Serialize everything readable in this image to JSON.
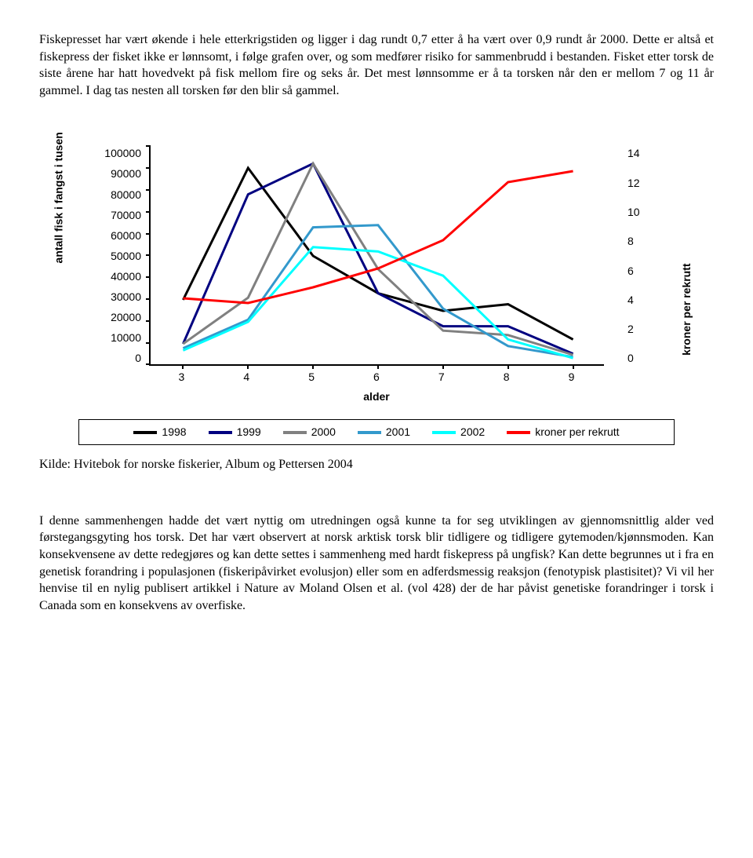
{
  "paragraph1": "Fiskepresset har vært økende i hele etterkrigstiden og ligger i dag rundt 0,7 etter å ha vært over 0,9 rundt år 2000. Dette er altså et fiskepress der fisket ikke er lønnsomt, i følge grafen over, og som medfører risiko for sammenbrudd i bestanden. Fisket etter torsk de siste årene har hatt hovedvekt på fisk mellom fire og seks år. Det mest lønnsomme er å ta torsken når den er mellom 7 og 11 år gammel. I dag tas nesten all torsken før den blir så gammel.",
  "paragraph2": "I denne sammenhengen hadde det vært nyttig om utredningen også kunne ta for seg utviklingen av gjennomsnittlig alder ved førstegangsgyting hos torsk. Det har vært observert at norsk arktisk torsk blir tidligere og tidligere gytemoden/kjønnsmoden. Kan konsekvensene av dette redegjøres og kan dette settes i sammenheng med hardt fiskepress på ungfisk? Kan dette begrunnes ut i fra en genetisk forandring i populasjonen (fiskeripåvirket evolusjon) eller som en adferdsmessig reaksjon (fenotypisk plastisitet)? Vi vil her henvise til en nylig publisert artikkel i Nature av Moland Olsen et al. (vol 428) der de har påvist genetiske forandringer i torsk i Canada som en konsekvens av overfiske.",
  "source": "Kilde: Hvitebok for norske fiskerier, Album og Pettersen 2004",
  "chart": {
    "type": "line",
    "x_title": "alder",
    "y1_title": "antall fisk i fangst i tusen",
    "y2_title": "kroner per rekrutt",
    "x_categories": [
      "3",
      "4",
      "5",
      "6",
      "7",
      "8",
      "9"
    ],
    "y1_ticks": [
      "100000",
      "90000",
      "80000",
      "70000",
      "60000",
      "50000",
      "40000",
      "30000",
      "20000",
      "10000",
      "0"
    ],
    "y2_ticks": [
      "14",
      "12",
      "10",
      "8",
      "6",
      "4",
      "2",
      "0"
    ],
    "y1_max": 100000,
    "y2_max": 14,
    "line_width": 3,
    "background_color": "#ffffff",
    "border_color": "#000000",
    "series": [
      {
        "name": "1998",
        "color": "#000000",
        "axis": "y1",
        "values": [
          30000,
          90000,
          50000,
          33000,
          25000,
          28000,
          12000
        ]
      },
      {
        "name": "1999",
        "color": "#000080",
        "axis": "y1",
        "values": [
          10000,
          78000,
          92000,
          33000,
          18000,
          18000,
          5500
        ]
      },
      {
        "name": "2000",
        "color": "#808080",
        "axis": "y1",
        "values": [
          10000,
          31000,
          92000,
          44000,
          16000,
          14000,
          5000
        ]
      },
      {
        "name": "2001",
        "color": "#3399cc",
        "axis": "y1",
        "values": [
          8000,
          21000,
          63000,
          64000,
          26000,
          9000,
          4000
        ]
      },
      {
        "name": "2002",
        "color": "#00ffff",
        "axis": "y1",
        "values": [
          7000,
          20000,
          54000,
          52000,
          41000,
          12000,
          3500
        ]
      },
      {
        "name": "kroner per rekrutt",
        "color": "#ff0000",
        "axis": "y2",
        "values": [
          4.3,
          4.0,
          5.0,
          6.2,
          8.0,
          11.7,
          12.4
        ]
      }
    ],
    "title_fontsize": 14,
    "label_fontsize": 14,
    "font_family": "Arial"
  }
}
